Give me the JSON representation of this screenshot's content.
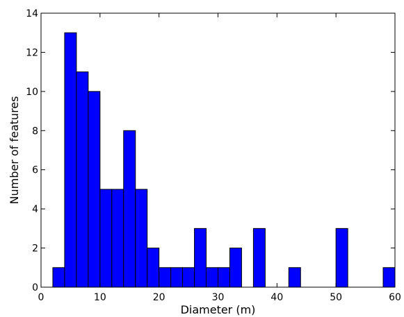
{
  "chart_data": {
    "type": "bar",
    "title": "",
    "xlabel": "Diameter (m)",
    "ylabel": "Number of features",
    "xlim": [
      0,
      60
    ],
    "ylim": [
      0,
      14
    ],
    "x_ticks": [
      0,
      10,
      20,
      30,
      40,
      50,
      60
    ],
    "y_ticks": [
      0,
      2,
      4,
      6,
      8,
      10,
      12,
      14
    ],
    "bin_width": 2,
    "bin_starts": [
      2,
      4,
      6,
      8,
      10,
      12,
      14,
      16,
      18,
      20,
      22,
      24,
      26,
      28,
      30,
      32,
      34,
      36,
      38,
      40,
      42,
      44,
      46,
      48,
      50,
      52,
      54,
      56,
      58
    ],
    "values": [
      1,
      13,
      11,
      10,
      5,
      5,
      8,
      5,
      2,
      1,
      1,
      1,
      3,
      1,
      1,
      2,
      0,
      3,
      0,
      0,
      1,
      0,
      0,
      0,
      3,
      0,
      0,
      0,
      1
    ],
    "bar_color": "#0000ff",
    "edge_color": "#000000",
    "grid": false,
    "legend": "none"
  }
}
